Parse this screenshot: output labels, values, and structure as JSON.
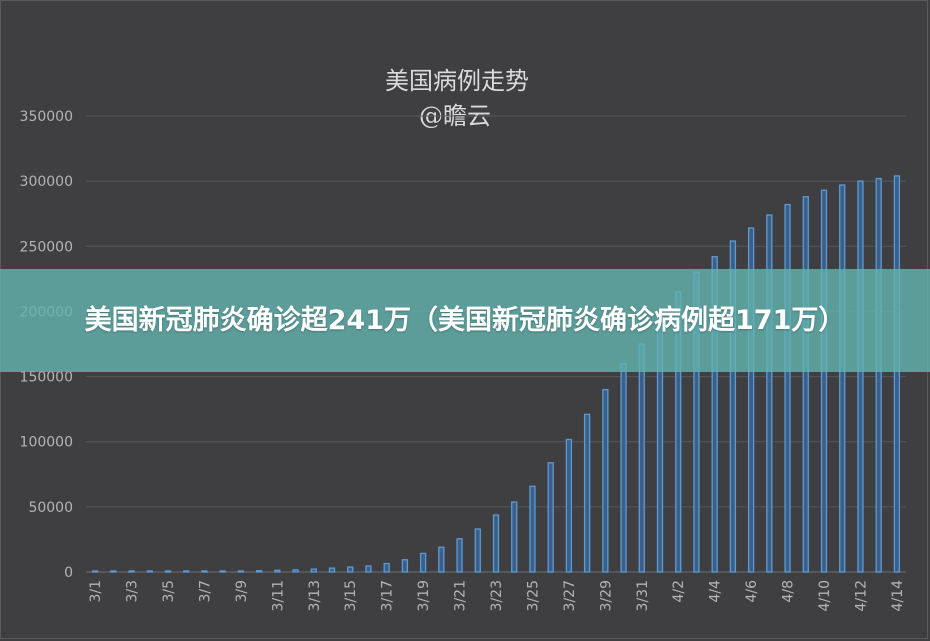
{
  "chart_data": {
    "type": "bar",
    "title": "美国病例走势",
    "subtitle": "@瞻云",
    "xlabel": "",
    "ylabel": "",
    "ylim": [
      0,
      350000
    ],
    "yticks": [
      "0",
      "50000",
      "100000",
      "150000",
      "200000",
      "250000",
      "300000",
      "350000"
    ],
    "grid": true,
    "legend": "none",
    "categories": [
      "3/1",
      "3/2",
      "3/3",
      "3/4",
      "3/5",
      "3/6",
      "3/7",
      "3/8",
      "3/9",
      "3/10",
      "3/11",
      "3/12",
      "3/13",
      "3/14",
      "3/15",
      "3/16",
      "3/17",
      "3/18",
      "3/19",
      "3/20",
      "3/21",
      "3/22",
      "3/23",
      "3/24",
      "3/25",
      "3/26",
      "3/27",
      "3/28",
      "3/29",
      "3/30",
      "3/31",
      "4/1",
      "4/2",
      "4/3",
      "4/4",
      "4/5",
      "4/6",
      "4/7",
      "4/8",
      "4/9",
      "4/10",
      "4/11",
      "4/12",
      "4/13",
      "4/14"
    ],
    "xtick_labels": [
      "3/1",
      "3/3",
      "3/5",
      "3/7",
      "3/9",
      "3/11",
      "3/13",
      "3/15",
      "3/17",
      "3/19",
      "3/21",
      "3/23",
      "3/25",
      "3/27",
      "3/29",
      "3/31",
      "4/2",
      "4/4",
      "4/6",
      "4/8",
      "4/10",
      "4/12",
      "4/14"
    ],
    "values": [
      75,
      100,
      125,
      160,
      220,
      300,
      440,
      550,
      750,
      1000,
      1300,
      1660,
      2200,
      2950,
      3780,
      4600,
      6500,
      9400,
      14250,
      19000,
      25500,
      33000,
      43700,
      53700,
      65800,
      83800,
      101700,
      121000,
      140000,
      160000,
      175000,
      198000,
      215000,
      230000,
      242000,
      254000,
      264000,
      274000,
      282000,
      288000,
      293000,
      297000,
      300000,
      302000,
      304000
    ],
    "bar_color": "#5b9bd5"
  },
  "banner": {
    "text": "美国新冠肺炎确诊超241万（美国新冠肺炎确诊病例超171万）"
  }
}
